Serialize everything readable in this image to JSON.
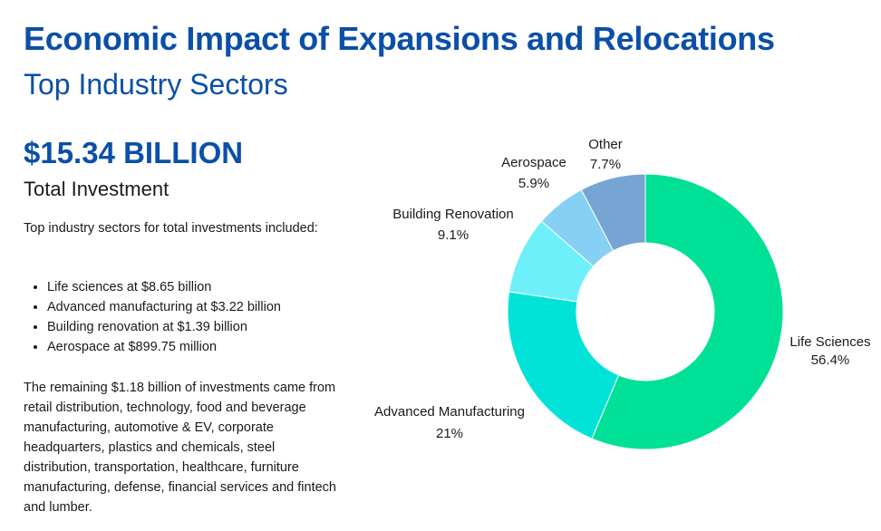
{
  "header": {
    "title": "Economic Impact of Expansions and Relocations",
    "subtitle": "Top Industry Sectors"
  },
  "summary": {
    "total_value": "$15.34 BILLION",
    "total_label": "Total Investment",
    "intro": "Top industry sectors for total investments included:",
    "bullets": [
      "Life sciences at $8.65 billion",
      "Advanced manufacturing at $3.22 billion",
      "Building renovation at $1.39 billion",
      "Aerospace at $899.75 million"
    ],
    "remaining": "The remaining $1.18 billion of investments came from retail distribution, technology, food and beverage manufacturing, automotive & EV, corporate headquarters, plastics and chemicals, steel distribution, transportation, healthcare, furniture manufacturing, defense, financial services and fintech and lumber."
  },
  "chart_data": {
    "type": "pie",
    "donut": true,
    "categories": [
      "Life Sciences",
      "Advanced Manufacturing",
      "Building Renovation",
      "Aerospace",
      "Other"
    ],
    "values": [
      56.4,
      21,
      9.1,
      5.9,
      7.7
    ],
    "value_labels": [
      "56.4%",
      "21%",
      "9.1%",
      "5.9%",
      "7.7%"
    ],
    "colors": [
      "#00e096",
      "#00e3d6",
      "#6ef0fb",
      "#86d0f3",
      "#76a5d3"
    ]
  }
}
